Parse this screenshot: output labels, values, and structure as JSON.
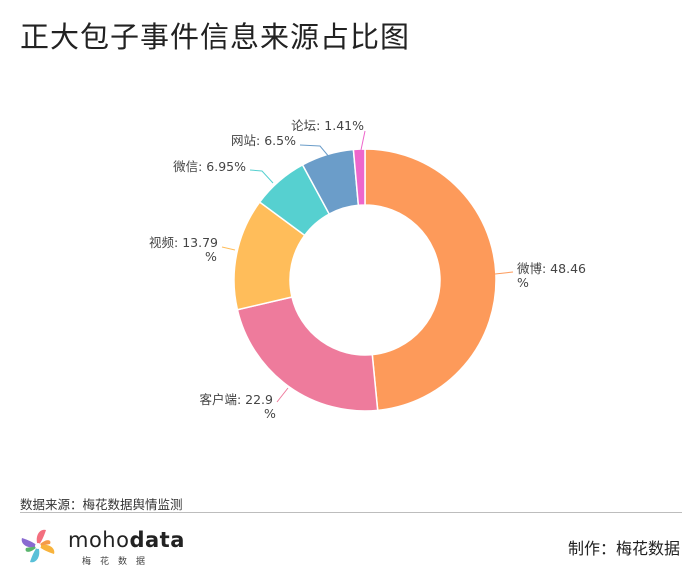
{
  "title": "正大包子事件信息来源占比图",
  "source": "数据来源：梅花数据舆情监测",
  "maker": "制作：梅花数据",
  "logo": {
    "word_light": "moho",
    "word_bold": "data",
    "sub": "梅花数据"
  },
  "chart_data": {
    "type": "pie",
    "donut": true,
    "title": "正大包子事件信息来源占比图",
    "series": [
      {
        "name": "微博",
        "value": 48.46,
        "color": "#FD9A5A"
      },
      {
        "name": "客户端",
        "value": 22.9,
        "color": "#EE7B9C"
      },
      {
        "name": "视频",
        "value": 13.79,
        "color": "#FFBD5A"
      },
      {
        "name": "微信",
        "value": 6.95,
        "color": "#56D0D0"
      },
      {
        "name": "网站",
        "value": 6.5,
        "color": "#6B9DC9"
      },
      {
        "name": "论坛",
        "value": 1.41,
        "color": "#EE66CC"
      }
    ],
    "labels": [
      [
        "微博: 48.46",
        "%"
      ],
      [
        "客户端: 22.9",
        "%"
      ],
      [
        "视频: 13.79",
        "%"
      ],
      [
        "微信: 6.95%"
      ],
      [
        "网站: 6.5%"
      ],
      [
        "论坛: 1.41%"
      ]
    ]
  }
}
